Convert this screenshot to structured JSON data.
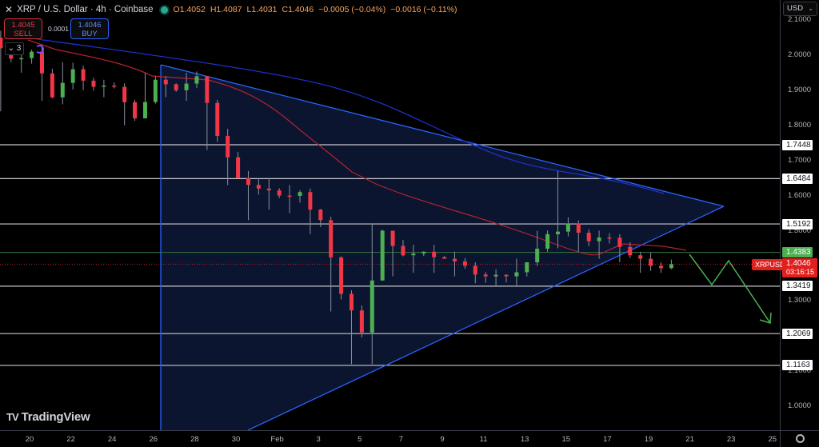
{
  "header": {
    "close_glyph": "✕",
    "title": "XRP / U.S. Dollar · 4h · Coinbase",
    "status_color": "#22ab94",
    "ohlc": {
      "open": "O1.4052",
      "high": "H1.4087",
      "low": "L1.4031",
      "close": "C1.4046",
      "change": "−0.0005 (−0.04%)",
      "change2": "−0.0016 (−0.11%)"
    }
  },
  "trade": {
    "sell_price": "1.4045",
    "sell_label": "SELL",
    "spread": "0.0001",
    "buy_price": "1.4046",
    "buy_label": "BUY"
  },
  "indicators": {
    "collapse_label": "⌄ 3"
  },
  "currency_selector": {
    "value": "USD",
    "chevron": "⌄"
  },
  "price_axis": {
    "ticks": [
      "2.1000",
      "2.0000",
      "1.9000",
      "1.8000",
      "1.7000",
      "1.6000",
      "1.5000",
      "1.4000",
      "1.3000",
      "1.2000",
      "1.1000",
      "1.0000"
    ],
    "tick_values": [
      2.1,
      2.0,
      1.9,
      1.8,
      1.7,
      1.6,
      1.5,
      1.4,
      1.3,
      1.2,
      1.1,
      1.0
    ]
  },
  "levels": [
    {
      "label": "1.7448",
      "value": 1.7448,
      "style": "white"
    },
    {
      "label": "1.6484",
      "value": 1.6484,
      "style": "white"
    },
    {
      "label": "1.5192",
      "value": 1.5192,
      "style": "white"
    },
    {
      "label": "1.4383",
      "value": 1.4383,
      "style": "green"
    },
    {
      "label": "1.3419",
      "value": 1.3419,
      "style": "white"
    },
    {
      "label": "1.2069",
      "value": 1.2069,
      "style": "white"
    },
    {
      "label": "1.1163",
      "value": 1.1163,
      "style": "white"
    }
  ],
  "current_price": {
    "symbol": "XRPUSD",
    "price": "1.4046",
    "countdown": "03:16:15",
    "value": 1.4046
  },
  "date_axis": {
    "labels": [
      "20",
      "22",
      "24",
      "26",
      "28",
      "30",
      "Feb",
      "3",
      "5",
      "7",
      "9",
      "11",
      "13",
      "15",
      "17",
      "19",
      "21",
      "23",
      "25"
    ]
  },
  "branding": {
    "logo_mark": "TV",
    "logo_text": "TradingView"
  },
  "colors": {
    "up": "#26a69a",
    "up_candle": "#4caf50",
    "down_candle": "#f23645",
    "triangle_fill": "#0c1530",
    "triangle_line": "#2962ff",
    "ma_red": "#b2222e",
    "ma_blue": "#1e2fc8",
    "projection": "#4caf50"
  },
  "chart_data": {
    "type": "candlestick",
    "title": "XRP / U.S. Dollar · 4h · Coinbase",
    "xlabel": "",
    "ylabel": "USD",
    "ylim": [
      0.93,
      2.11
    ],
    "x_ticks": [
      "20",
      "22",
      "24",
      "26",
      "28",
      "30",
      "Feb",
      "3",
      "5",
      "7",
      "9",
      "11",
      "13",
      "15",
      "17",
      "19",
      "21",
      "23",
      "25"
    ],
    "annotations": {
      "horizontal_levels": [
        1.7448,
        1.6484,
        1.5192,
        1.4383,
        1.3419,
        1.2069,
        1.1163
      ],
      "symmetrical_triangle": {
        "upper": [
          [
            26.3,
            1.97
          ],
          [
            22.5,
            1.555
          ]
        ],
        "lower": [
          [
            5.8,
            1.1163
          ],
          [
            22.5,
            1.555
          ]
        ],
        "left_edge_x": "26"
      },
      "projection_path": [
        [
          20.9,
          1.44
        ],
        [
          21.8,
          1.34
        ],
        [
          22.5,
          1.43
        ],
        [
          24.3,
          1.2
        ]
      ],
      "current_price": 1.4046
    },
    "candles_approx": [
      {
        "t": "19",
        "o": 2.05,
        "h": 2.07,
        "l": 1.84,
        "c": 1.99
      },
      {
        "t": "20",
        "o": 1.99,
        "h": 2.02,
        "l": 1.95,
        "c": 2.01
      },
      {
        "t": "21",
        "o": 2.01,
        "h": 2.03,
        "l": 1.87,
        "c": 1.88
      },
      {
        "t": "22",
        "o": 1.88,
        "h": 1.98,
        "l": 1.86,
        "c": 1.96
      },
      {
        "t": "23",
        "o": 1.96,
        "h": 1.97,
        "l": 1.9,
        "c": 1.91
      },
      {
        "t": "24",
        "o": 1.91,
        "h": 1.93,
        "l": 1.88,
        "c": 1.91
      },
      {
        "t": "25",
        "o": 1.91,
        "h": 1.92,
        "l": 1.8,
        "c": 1.82
      },
      {
        "t": "26",
        "o": 1.82,
        "h": 1.95,
        "l": 1.82,
        "c": 1.93
      },
      {
        "t": "27",
        "o": 1.93,
        "h": 1.94,
        "l": 1.88,
        "c": 1.9
      },
      {
        "t": "28",
        "o": 1.9,
        "h": 1.95,
        "l": 1.87,
        "c": 1.94
      },
      {
        "t": "29",
        "o": 1.94,
        "h": 1.94,
        "l": 1.73,
        "c": 1.77
      },
      {
        "t": "30",
        "o": 1.77,
        "h": 1.79,
        "l": 1.63,
        "c": 1.65
      },
      {
        "t": "31",
        "o": 1.65,
        "h": 1.67,
        "l": 1.53,
        "c": 1.62
      },
      {
        "t": "Feb 1",
        "o": 1.62,
        "h": 1.65,
        "l": 1.56,
        "c": 1.6
      },
      {
        "t": "2",
        "o": 1.6,
        "h": 1.63,
        "l": 1.55,
        "c": 1.61
      },
      {
        "t": "3",
        "o": 1.61,
        "h": 1.62,
        "l": 1.49,
        "c": 1.53
      },
      {
        "t": "4",
        "o": 1.53,
        "h": 1.54,
        "l": 1.27,
        "c": 1.32
      },
      {
        "t": "5",
        "o": 1.32,
        "h": 1.33,
        "l": 1.12,
        "c": 1.21
      },
      {
        "t": "6",
        "o": 1.21,
        "h": 1.52,
        "l": 1.12,
        "c": 1.5
      },
      {
        "t": "7",
        "o": 1.5,
        "h": 1.5,
        "l": 1.37,
        "c": 1.43
      },
      {
        "t": "8",
        "o": 1.43,
        "h": 1.46,
        "l": 1.38,
        "c": 1.44
      },
      {
        "t": "9",
        "o": 1.44,
        "h": 1.46,
        "l": 1.38,
        "c": 1.42
      },
      {
        "t": "10",
        "o": 1.42,
        "h": 1.44,
        "l": 1.37,
        "c": 1.4
      },
      {
        "t": "11",
        "o": 1.4,
        "h": 1.41,
        "l": 1.35,
        "c": 1.37
      },
      {
        "t": "12",
        "o": 1.37,
        "h": 1.39,
        "l": 1.34,
        "c": 1.37
      },
      {
        "t": "13",
        "o": 1.37,
        "h": 1.42,
        "l": 1.34,
        "c": 1.41
      },
      {
        "t": "14",
        "o": 1.41,
        "h": 1.5,
        "l": 1.4,
        "c": 1.49
      },
      {
        "t": "15",
        "o": 1.49,
        "h": 1.67,
        "l": 1.45,
        "c": 1.52
      },
      {
        "t": "16",
        "o": 1.52,
        "h": 1.53,
        "l": 1.44,
        "c": 1.47
      },
      {
        "t": "17",
        "o": 1.47,
        "h": 1.5,
        "l": 1.42,
        "c": 1.48
      },
      {
        "t": "18",
        "o": 1.48,
        "h": 1.49,
        "l": 1.41,
        "c": 1.43
      },
      {
        "t": "19",
        "o": 1.43,
        "h": 1.44,
        "l": 1.38,
        "c": 1.4
      },
      {
        "t": "20",
        "o": 1.4,
        "h": 1.41,
        "l": 1.38,
        "c": 1.4046
      }
    ]
  }
}
